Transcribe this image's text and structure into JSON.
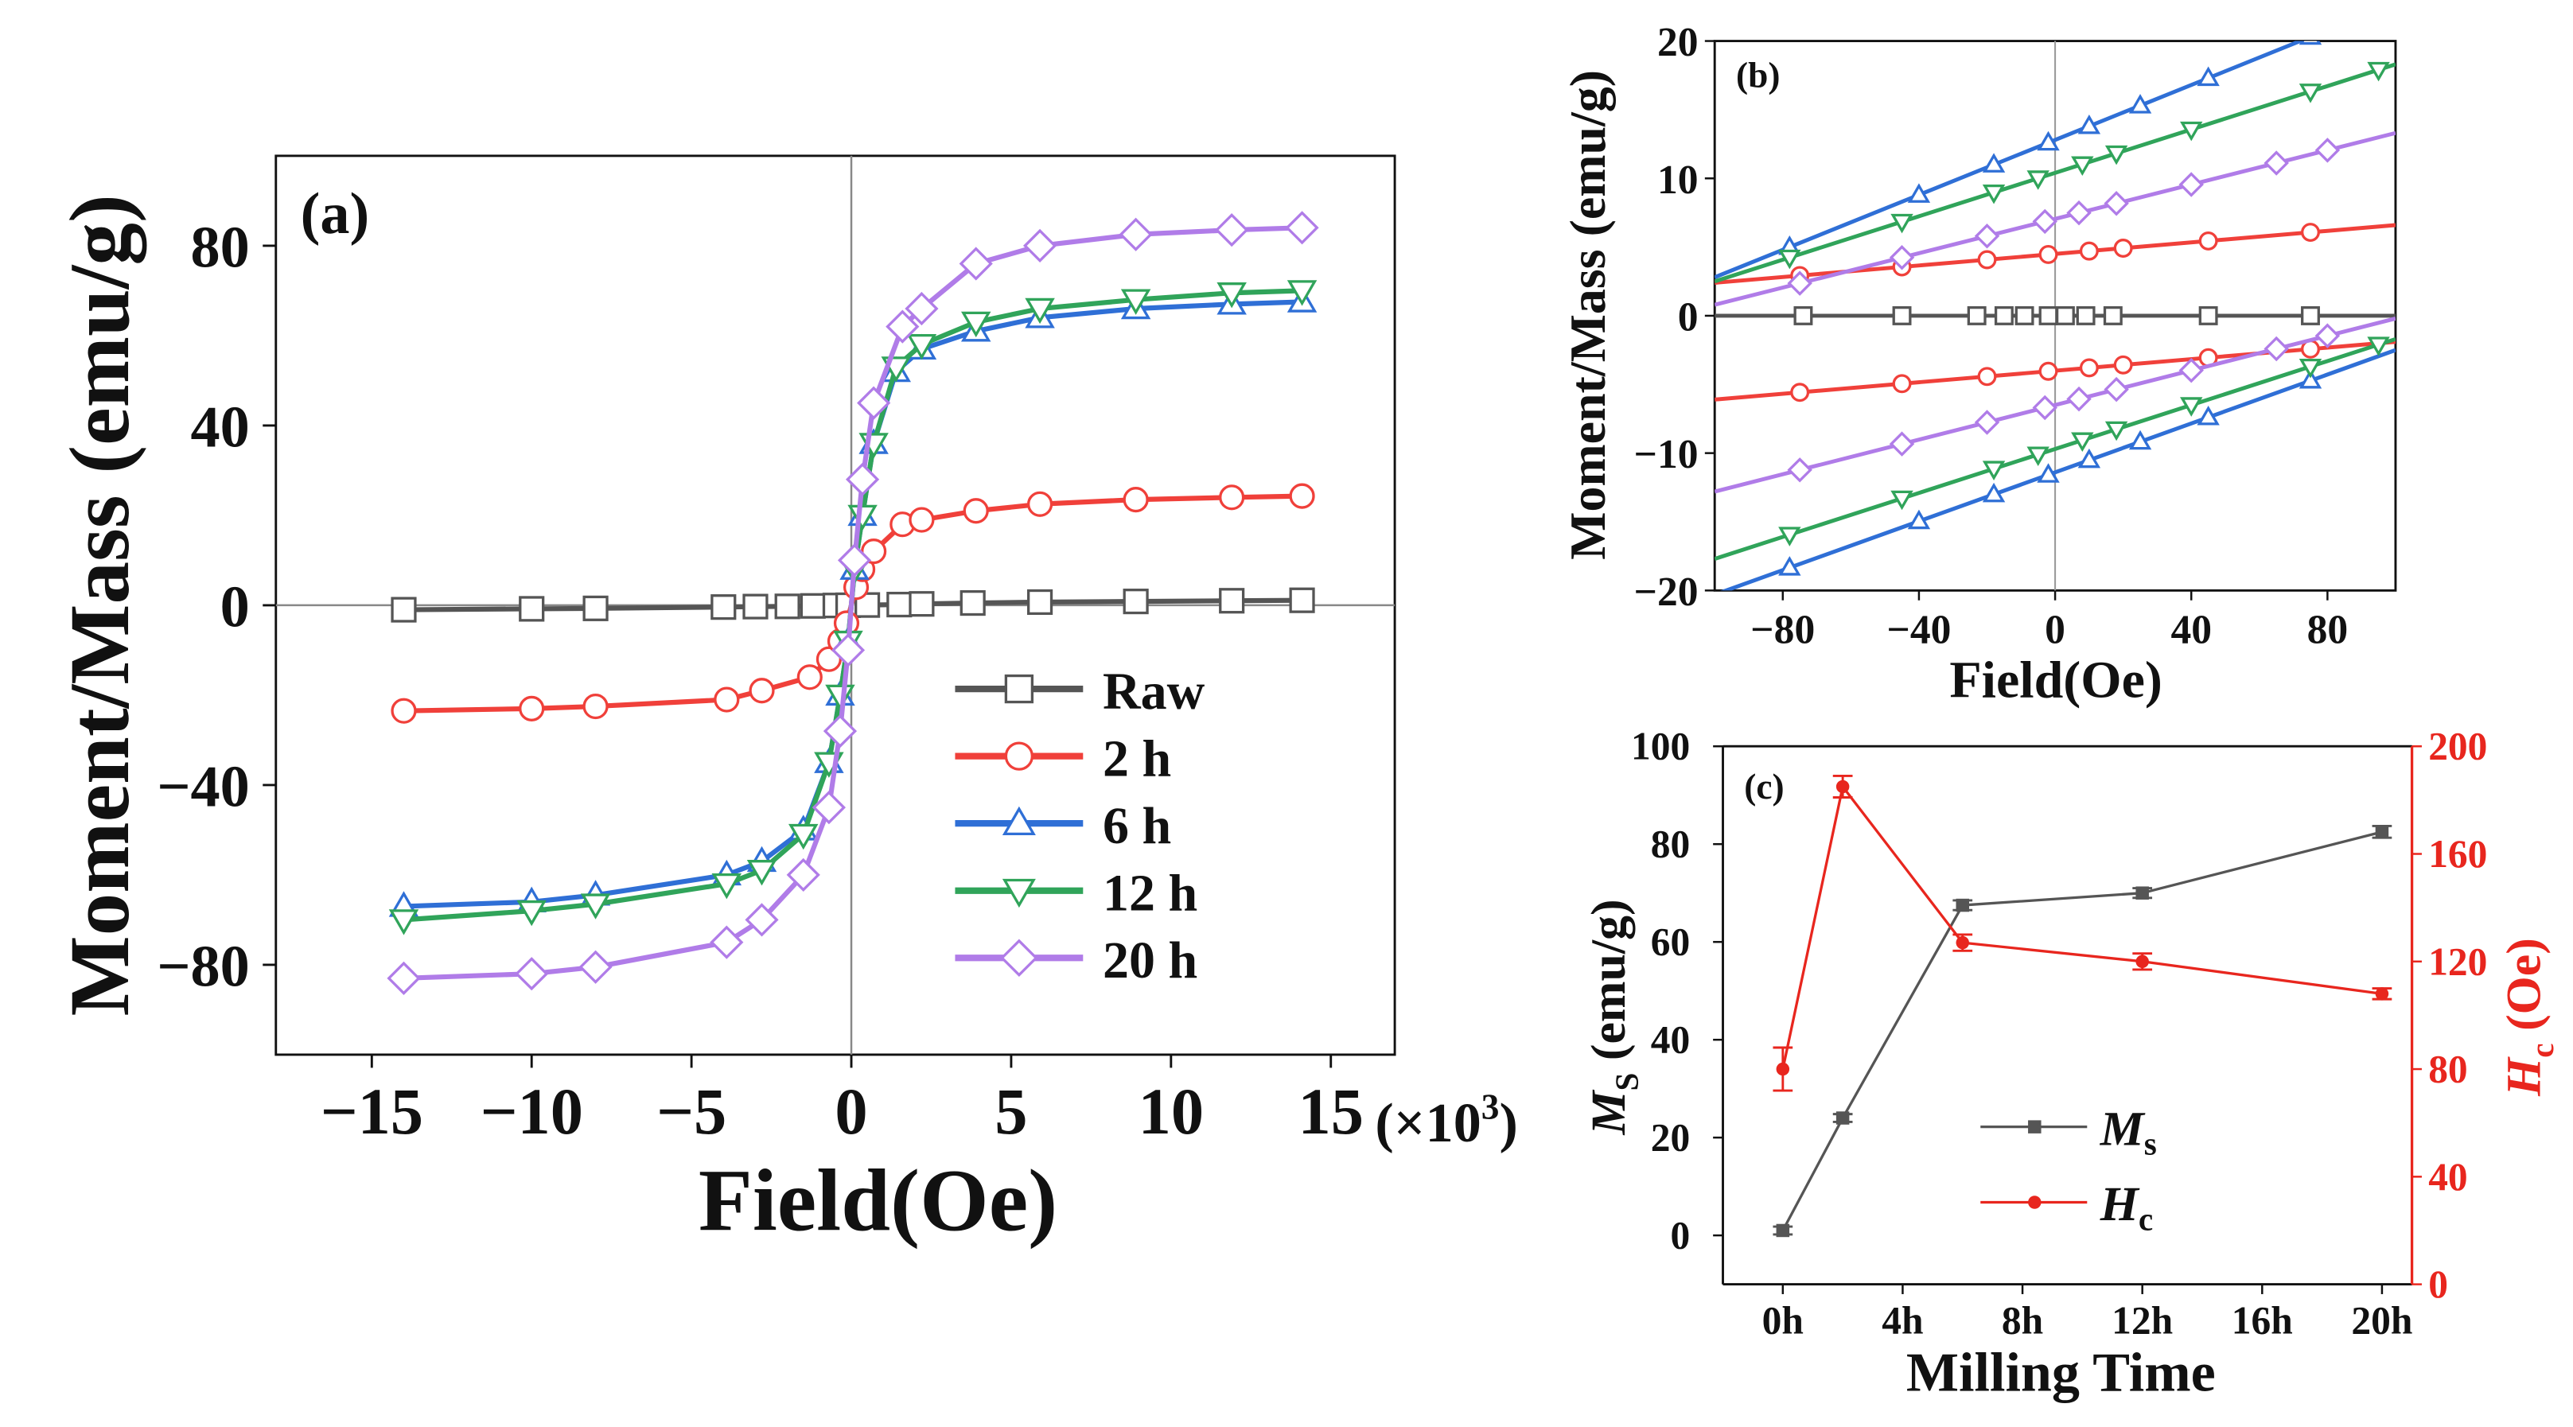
{
  "colors": {
    "raw": "#555555",
    "h2": "#f0403a",
    "h6": "#2f6fd6",
    "h12": "#30a45a",
    "h20": "#b07ce8",
    "axis": "#111111",
    "red": "#e8261e",
    "ms": "#555555"
  },
  "chart_data": [
    {
      "type": "line",
      "panel_label": "(a)",
      "xlabel": "Field(Oe)",
      "ylabel": "Moment/Mass (emu/g)",
      "x_multiplier": "(×10",
      "x_multiplier_exp": "3",
      "x_multiplier_close": ")",
      "xlim": [
        -18,
        17
      ],
      "ylim": [
        -100,
        100
      ],
      "xticks": [
        -15,
        -10,
        -5,
        0,
        5,
        10,
        15
      ],
      "xtick_labels": [
        "−15",
        "−10",
        "−5",
        "0",
        "5",
        "10",
        "15"
      ],
      "yticks": [
        -80,
        -40,
        0,
        40,
        80
      ],
      "ytick_labels": [
        "−80",
        "−40",
        "0",
        "40",
        "80"
      ],
      "legend": [
        "Raw",
        "2 h",
        "6 h",
        "12 h",
        "20 h"
      ],
      "legend_position": "bottom-right",
      "series": [
        {
          "name": "Raw",
          "marker": "square",
          "color_key": "raw",
          "x": [
            -14,
            -10,
            -8,
            -4,
            -3,
            -2,
            -1.2,
            -0.5,
            -0.1,
            0.1,
            0.5,
            1.5,
            2.2,
            3.8,
            5.9,
            8.9,
            11.9,
            14.1
          ],
          "y": [
            -1,
            -0.8,
            -0.7,
            -0.4,
            -0.3,
            -0.25,
            -0.15,
            -0.05,
            0,
            0,
            0.05,
            0.15,
            0.3,
            0.5,
            0.7,
            0.85,
            1,
            1.1
          ]
        },
        {
          "name": "2 h",
          "marker": "circle",
          "color_key": "h2",
          "x": [
            -14,
            -10,
            -8,
            -3.9,
            -2.8,
            -1.3,
            -0.7,
            -0.35,
            -0.15,
            0,
            0.15,
            0.35,
            0.7,
            1.6,
            2.2,
            3.9,
            5.9,
            8.9,
            11.9,
            14.1
          ],
          "y": [
            -23.5,
            -23,
            -22.5,
            -21,
            -19,
            -16,
            -12,
            -8,
            -4,
            0,
            4,
            8,
            12,
            18,
            19,
            21,
            22.5,
            23.5,
            24,
            24.3
          ]
        },
        {
          "name": "6 h",
          "marker": "triangle-up",
          "color_key": "h6",
          "x": [
            -14,
            -10,
            -8,
            -3.9,
            -2.8,
            -1.5,
            -0.7,
            -0.35,
            -0.1,
            0,
            0.1,
            0.35,
            0.7,
            1.4,
            2.2,
            3.9,
            5.9,
            8.9,
            11.9,
            14.1
          ],
          "y": [
            -67,
            -66,
            -64.5,
            -60,
            -57,
            -50,
            -35,
            -20,
            -8,
            0,
            8,
            20,
            36,
            52,
            57,
            61,
            64,
            66,
            67,
            67.5
          ]
        },
        {
          "name": "12 h",
          "marker": "triangle-down",
          "color_key": "h12",
          "x": [
            -14,
            -10,
            -8,
            -3.9,
            -2.8,
            -1.5,
            -0.7,
            -0.35,
            -0.1,
            0,
            0.1,
            0.35,
            0.7,
            1.4,
            2.2,
            3.9,
            5.9,
            8.9,
            11.9,
            14.1
          ],
          "y": [
            -70,
            -68,
            -66.5,
            -62,
            -59,
            -51,
            -35,
            -20,
            -8,
            0,
            8,
            20,
            36,
            53,
            58,
            63,
            66,
            68,
            69.5,
            70
          ]
        },
        {
          "name": "20 h",
          "marker": "diamond",
          "color_key": "h20",
          "x": [
            -14,
            -10,
            -8,
            -3.9,
            -2.8,
            -1.5,
            -0.7,
            -0.35,
            -0.1,
            0,
            0.1,
            0.35,
            0.7,
            1.6,
            2.2,
            3.9,
            5.9,
            8.9,
            11.9,
            14.1
          ],
          "y": [
            -83,
            -82,
            -80.5,
            -75,
            -70,
            -60,
            -45,
            -28,
            -10,
            0,
            10,
            28,
            45,
            62,
            66,
            76,
            80,
            82.5,
            83.5,
            84
          ]
        }
      ]
    },
    {
      "type": "line",
      "panel_label": "(b)",
      "xlabel": "Field(Oe)",
      "ylabel": "Moment/Mass (emu/g)",
      "xlim": [
        -100,
        100
      ],
      "ylim": [
        -20,
        20
      ],
      "xticks": [
        -80,
        -40,
        0,
        40,
        80
      ],
      "xtick_labels": [
        "−80",
        "−40",
        "0",
        "40",
        "80"
      ],
      "yticks": [
        -20,
        -10,
        0,
        10,
        20
      ],
      "ytick_labels": [
        "−20",
        "−10",
        "0",
        "10",
        "20"
      ],
      "series": [
        {
          "name": "Raw",
          "marker": "square",
          "color_key": "raw",
          "branches": [
            {
              "x": [
                -100,
                100
              ],
              "y": [
                0,
                0
              ]
            }
          ],
          "marks": [
            -74,
            -45,
            -23,
            -15,
            -9,
            -2,
            3,
            9,
            17,
            45,
            75
          ]
        },
        {
          "name": "2 h",
          "marker": "circle",
          "color_key": "h2",
          "branches": [
            {
              "x": [
                -100,
                100
              ],
              "y": [
                2.4,
                6.6
              ]
            },
            {
              "x": [
                -100,
                100
              ],
              "y": [
                -6.1,
                -1.9
              ]
            }
          ],
          "marks": [
            -75,
            -45,
            -20,
            -2,
            10,
            20,
            45,
            75
          ]
        },
        {
          "name": "6 h",
          "marker": "triangle-up",
          "color_key": "h6",
          "branches": [
            {
              "x": [
                -100,
                100
              ],
              "y": [
                2.8,
                22.8
              ]
            },
            {
              "x": [
                -100,
                100
              ],
              "y": [
                -20.3,
                -2.5
              ]
            }
          ],
          "marks": [
            -78,
            -40,
            -18,
            -2,
            10,
            25,
            45,
            75
          ]
        },
        {
          "name": "12 h",
          "marker": "triangle-down",
          "color_key": "h12",
          "branches": [
            {
              "x": [
                -100,
                100
              ],
              "y": [
                2.5,
                18.3
              ]
            },
            {
              "x": [
                -100,
                100
              ],
              "y": [
                -17.7,
                -1.7
              ]
            }
          ],
          "marks": [
            -78,
            -45,
            -18,
            -5,
            8,
            18,
            40,
            75,
            95
          ]
        },
        {
          "name": "20 h",
          "marker": "diamond",
          "color_key": "h20",
          "branches": [
            {
              "x": [
                -100,
                100
              ],
              "y": [
                0.8,
                13.3
              ]
            },
            {
              "x": [
                -100,
                100
              ],
              "y": [
                -12.8,
                -0.2
              ]
            }
          ],
          "marks": [
            -75,
            -45,
            -20,
            -3,
            7,
            18,
            40,
            65,
            80
          ]
        }
      ]
    },
    {
      "type": "line",
      "panel_label": "(c)",
      "xlabel": "Milling Time",
      "categories_x": [
        0,
        4,
        8,
        12,
        16,
        20
      ],
      "xtick_labels": [
        "0h",
        "4h",
        "8h",
        "12h",
        "16h",
        "20h"
      ],
      "xlim": [
        -2,
        21
      ],
      "y_left": {
        "label_main": "M",
        "label_sub": "S",
        "label_rest": " (emu/g)",
        "lim": [
          -10,
          100
        ],
        "ticks": [
          0,
          20,
          40,
          60,
          80,
          100
        ],
        "tick_labels": [
          "0",
          "20",
          "40",
          "60",
          "80",
          "100"
        ]
      },
      "y_right": {
        "label_main": "H",
        "label_sub": "c",
        "label_rest": " (Oe)",
        "lim": [
          0,
          200
        ],
        "ticks": [
          0,
          40,
          80,
          120,
          160,
          200
        ],
        "tick_labels": [
          "0",
          "40",
          "80",
          "120",
          "160",
          "200"
        ]
      },
      "legend_position": "lower-middle",
      "series": [
        {
          "name": "Ms",
          "legend_main": "M",
          "legend_sub": "s",
          "axis": "left",
          "color_key": "ms",
          "x": [
            0,
            2,
            6,
            12,
            20
          ],
          "y": [
            1,
            24,
            67.5,
            70,
            82.5
          ],
          "err": [
            0.8,
            0.8,
            1,
            1,
            1.2
          ]
        },
        {
          "name": "Hc",
          "legend_main": "H",
          "legend_sub": "c",
          "axis": "right",
          "color_key": "red",
          "x": [
            0,
            2,
            6,
            12,
            20
          ],
          "y": [
            80,
            185,
            127,
            120,
            108
          ],
          "err": [
            8,
            4,
            3,
            3,
            2
          ]
        }
      ]
    }
  ]
}
